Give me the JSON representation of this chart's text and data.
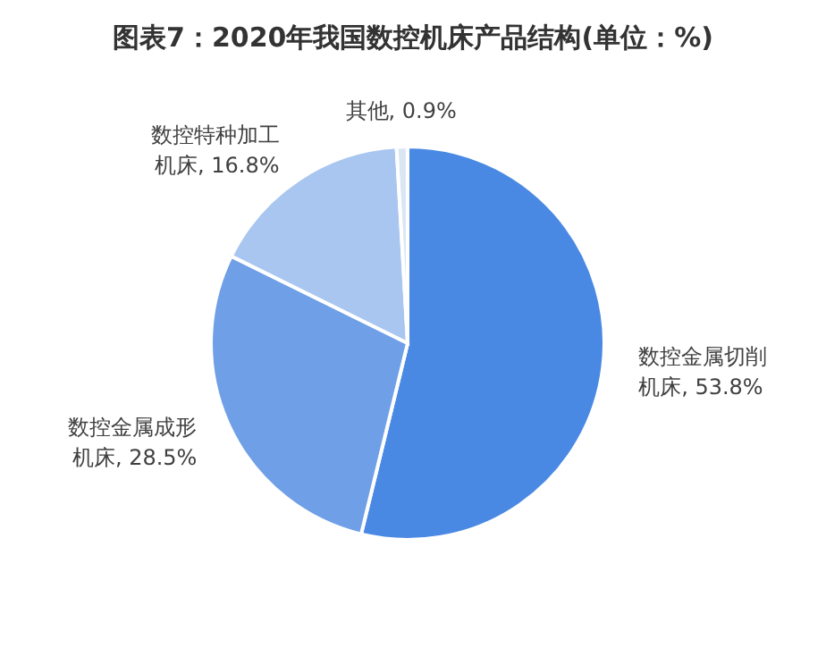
{
  "chart_data": {
    "type": "pie",
    "title": "图表7：2020年我国数控机床产品结构(单位：%)",
    "categories": [
      "数控金属切削机床",
      "数控金属成形机床",
      "数控特种加工机床",
      "其他"
    ],
    "values": [
      53.8,
      28.5,
      16.8,
      0.9
    ],
    "colors": [
      "#4a89e3",
      "#6f9fe6",
      "#a8c6f0",
      "#dbe6f4"
    ],
    "value_labels": [
      "53.8%",
      "28.5%",
      "16.8%",
      "0.9%"
    ]
  }
}
